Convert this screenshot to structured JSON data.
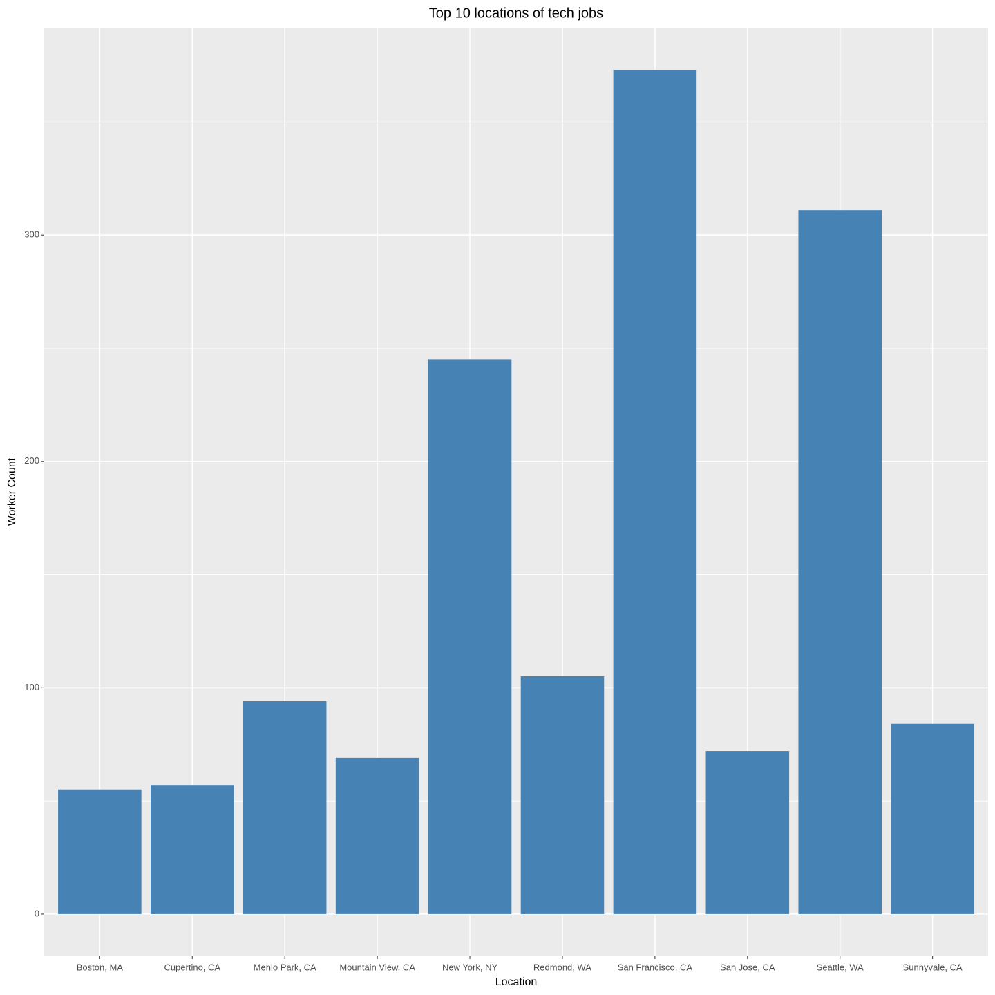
{
  "chart_data": {
    "type": "bar",
    "title": "Top 10 locations of tech jobs",
    "x_label": "Location",
    "y_label": "Worker Count",
    "categories": [
      "Boston, MA",
      "Cupertino, CA",
      "Menlo Park, CA",
      "Mountain View, CA",
      "New York, NY",
      "Redmond, WA",
      "San Francisco, CA",
      "San Jose, CA",
      "Seattle, WA",
      "Sunnyvale, CA"
    ],
    "values": [
      55,
      57,
      94,
      69,
      245,
      105,
      373,
      72,
      311,
      84
    ],
    "color": "#4682b4",
    "ylim": [
      -18.65,
      391.65
    ],
    "yticks": [
      0,
      100,
      200,
      300
    ],
    "minor_yticks": [
      50,
      150,
      250,
      350
    ],
    "grid": true
  }
}
